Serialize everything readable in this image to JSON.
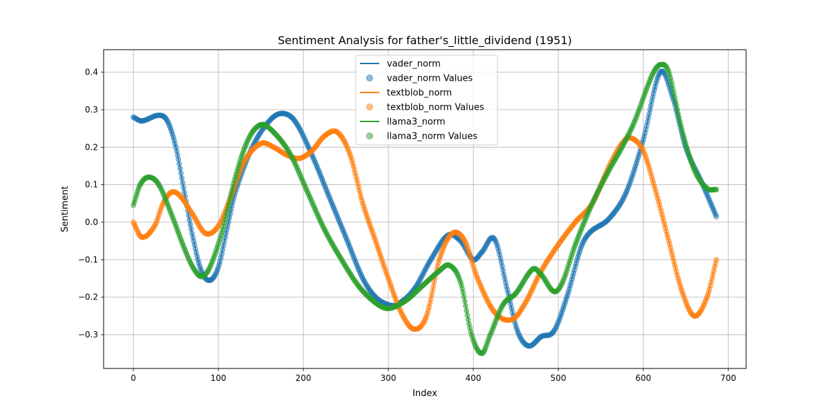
{
  "chart_data": {
    "type": "line",
    "title": "Sentiment Analysis for father's_little_dividend (1951)",
    "xlabel": "Index",
    "ylabel": "Sentiment",
    "xlim": [
      -35,
      721
    ],
    "ylim": [
      -0.39,
      0.46
    ],
    "x_ticks": [
      0,
      100,
      200,
      300,
      400,
      500,
      600,
      700
    ],
    "y_ticks": [
      -0.3,
      -0.2,
      -0.1,
      0.0,
      0.1,
      0.2,
      0.3,
      0.4
    ],
    "x_tick_labels": [
      "0",
      "100",
      "200",
      "300",
      "400",
      "500",
      "600",
      "700"
    ],
    "y_tick_labels": [
      "−0.3",
      "−0.2",
      "−0.1",
      "0.0",
      "0.1",
      "0.2",
      "0.3",
      "0.4"
    ],
    "grid": true,
    "legend_position": "upper center",
    "n_points": 687,
    "series": [
      {
        "name": "vader_norm",
        "scatter_name": "vader_norm Values",
        "color": "#1f77b4",
        "keypoints": [
          [
            0,
            0.28
          ],
          [
            10,
            0.27
          ],
          [
            30,
            0.285
          ],
          [
            40,
            0.27
          ],
          [
            50,
            0.2
          ],
          [
            60,
            0.08
          ],
          [
            70,
            -0.04
          ],
          [
            80,
            -0.13
          ],
          [
            90,
            -0.155
          ],
          [
            100,
            -0.12
          ],
          [
            110,
            -0.02
          ],
          [
            120,
            0.08
          ],
          [
            140,
            0.2
          ],
          [
            160,
            0.27
          ],
          [
            175,
            0.29
          ],
          [
            190,
            0.27
          ],
          [
            210,
            0.18
          ],
          [
            230,
            0.07
          ],
          [
            250,
            -0.04
          ],
          [
            270,
            -0.15
          ],
          [
            285,
            -0.2
          ],
          [
            300,
            -0.22
          ],
          [
            310,
            -0.22
          ],
          [
            330,
            -0.18
          ],
          [
            350,
            -0.1
          ],
          [
            370,
            -0.035
          ],
          [
            385,
            -0.05
          ],
          [
            400,
            -0.1
          ],
          [
            410,
            -0.08
          ],
          [
            425,
            -0.045
          ],
          [
            440,
            -0.18
          ],
          [
            452,
            -0.29
          ],
          [
            465,
            -0.33
          ],
          [
            480,
            -0.305
          ],
          [
            495,
            -0.29
          ],
          [
            510,
            -0.2
          ],
          [
            530,
            -0.05
          ],
          [
            560,
            0.01
          ],
          [
            580,
            0.08
          ],
          [
            600,
            0.22
          ],
          [
            620,
            0.4
          ],
          [
            635,
            0.33
          ],
          [
            650,
            0.2
          ],
          [
            670,
            0.1
          ],
          [
            686,
            0.015
          ]
        ]
      },
      {
        "name": "textblob_norm",
        "scatter_name": "textblob_norm Values",
        "color": "#ff7f0e",
        "keypoints": [
          [
            0,
            0.0
          ],
          [
            10,
            -0.04
          ],
          [
            25,
            -0.01
          ],
          [
            35,
            0.05
          ],
          [
            45,
            0.08
          ],
          [
            55,
            0.07
          ],
          [
            70,
            0.02
          ],
          [
            85,
            -0.03
          ],
          [
            100,
            -0.01
          ],
          [
            115,
            0.07
          ],
          [
            130,
            0.16
          ],
          [
            150,
            0.21
          ],
          [
            165,
            0.2
          ],
          [
            180,
            0.18
          ],
          [
            195,
            0.17
          ],
          [
            210,
            0.19
          ],
          [
            225,
            0.23
          ],
          [
            240,
            0.24
          ],
          [
            255,
            0.18
          ],
          [
            270,
            0.05
          ],
          [
            285,
            -0.05
          ],
          [
            300,
            -0.15
          ],
          [
            315,
            -0.24
          ],
          [
            330,
            -0.285
          ],
          [
            345,
            -0.25
          ],
          [
            360,
            -0.1
          ],
          [
            375,
            -0.03
          ],
          [
            390,
            -0.05
          ],
          [
            405,
            -0.15
          ],
          [
            425,
            -0.24
          ],
          [
            445,
            -0.26
          ],
          [
            460,
            -0.22
          ],
          [
            480,
            -0.13
          ],
          [
            500,
            -0.06
          ],
          [
            520,
            0.0
          ],
          [
            540,
            0.05
          ],
          [
            560,
            0.15
          ],
          [
            575,
            0.21
          ],
          [
            585,
            0.225
          ],
          [
            600,
            0.19
          ],
          [
            615,
            0.08
          ],
          [
            630,
            -0.05
          ],
          [
            645,
            -0.18
          ],
          [
            660,
            -0.25
          ],
          [
            675,
            -0.2
          ],
          [
            686,
            -0.1
          ]
        ]
      },
      {
        "name": "llama3_norm",
        "scatter_name": "llama3_norm Values",
        "color": "#2ca02c",
        "keypoints": [
          [
            0,
            0.045
          ],
          [
            8,
            0.1
          ],
          [
            18,
            0.12
          ],
          [
            30,
            0.1
          ],
          [
            45,
            0.02
          ],
          [
            60,
            -0.07
          ],
          [
            70,
            -0.12
          ],
          [
            80,
            -0.145
          ],
          [
            90,
            -0.12
          ],
          [
            105,
            -0.02
          ],
          [
            120,
            0.12
          ],
          [
            135,
            0.22
          ],
          [
            150,
            0.26
          ],
          [
            165,
            0.24
          ],
          [
            185,
            0.18
          ],
          [
            205,
            0.08
          ],
          [
            225,
            -0.02
          ],
          [
            245,
            -0.1
          ],
          [
            265,
            -0.17
          ],
          [
            285,
            -0.215
          ],
          [
            300,
            -0.23
          ],
          [
            320,
            -0.21
          ],
          [
            340,
            -0.17
          ],
          [
            360,
            -0.13
          ],
          [
            372,
            -0.115
          ],
          [
            385,
            -0.16
          ],
          [
            398,
            -0.3
          ],
          [
            410,
            -0.35
          ],
          [
            420,
            -0.3
          ],
          [
            435,
            -0.22
          ],
          [
            450,
            -0.19
          ],
          [
            470,
            -0.125
          ],
          [
            480,
            -0.14
          ],
          [
            495,
            -0.185
          ],
          [
            505,
            -0.16
          ],
          [
            520,
            -0.06
          ],
          [
            540,
            0.05
          ],
          [
            560,
            0.14
          ],
          [
            575,
            0.2
          ],
          [
            590,
            0.27
          ],
          [
            610,
            0.39
          ],
          [
            620,
            0.42
          ],
          [
            630,
            0.4
          ],
          [
            645,
            0.25
          ],
          [
            660,
            0.14
          ],
          [
            675,
            0.09
          ],
          [
            686,
            0.087
          ]
        ]
      }
    ]
  }
}
